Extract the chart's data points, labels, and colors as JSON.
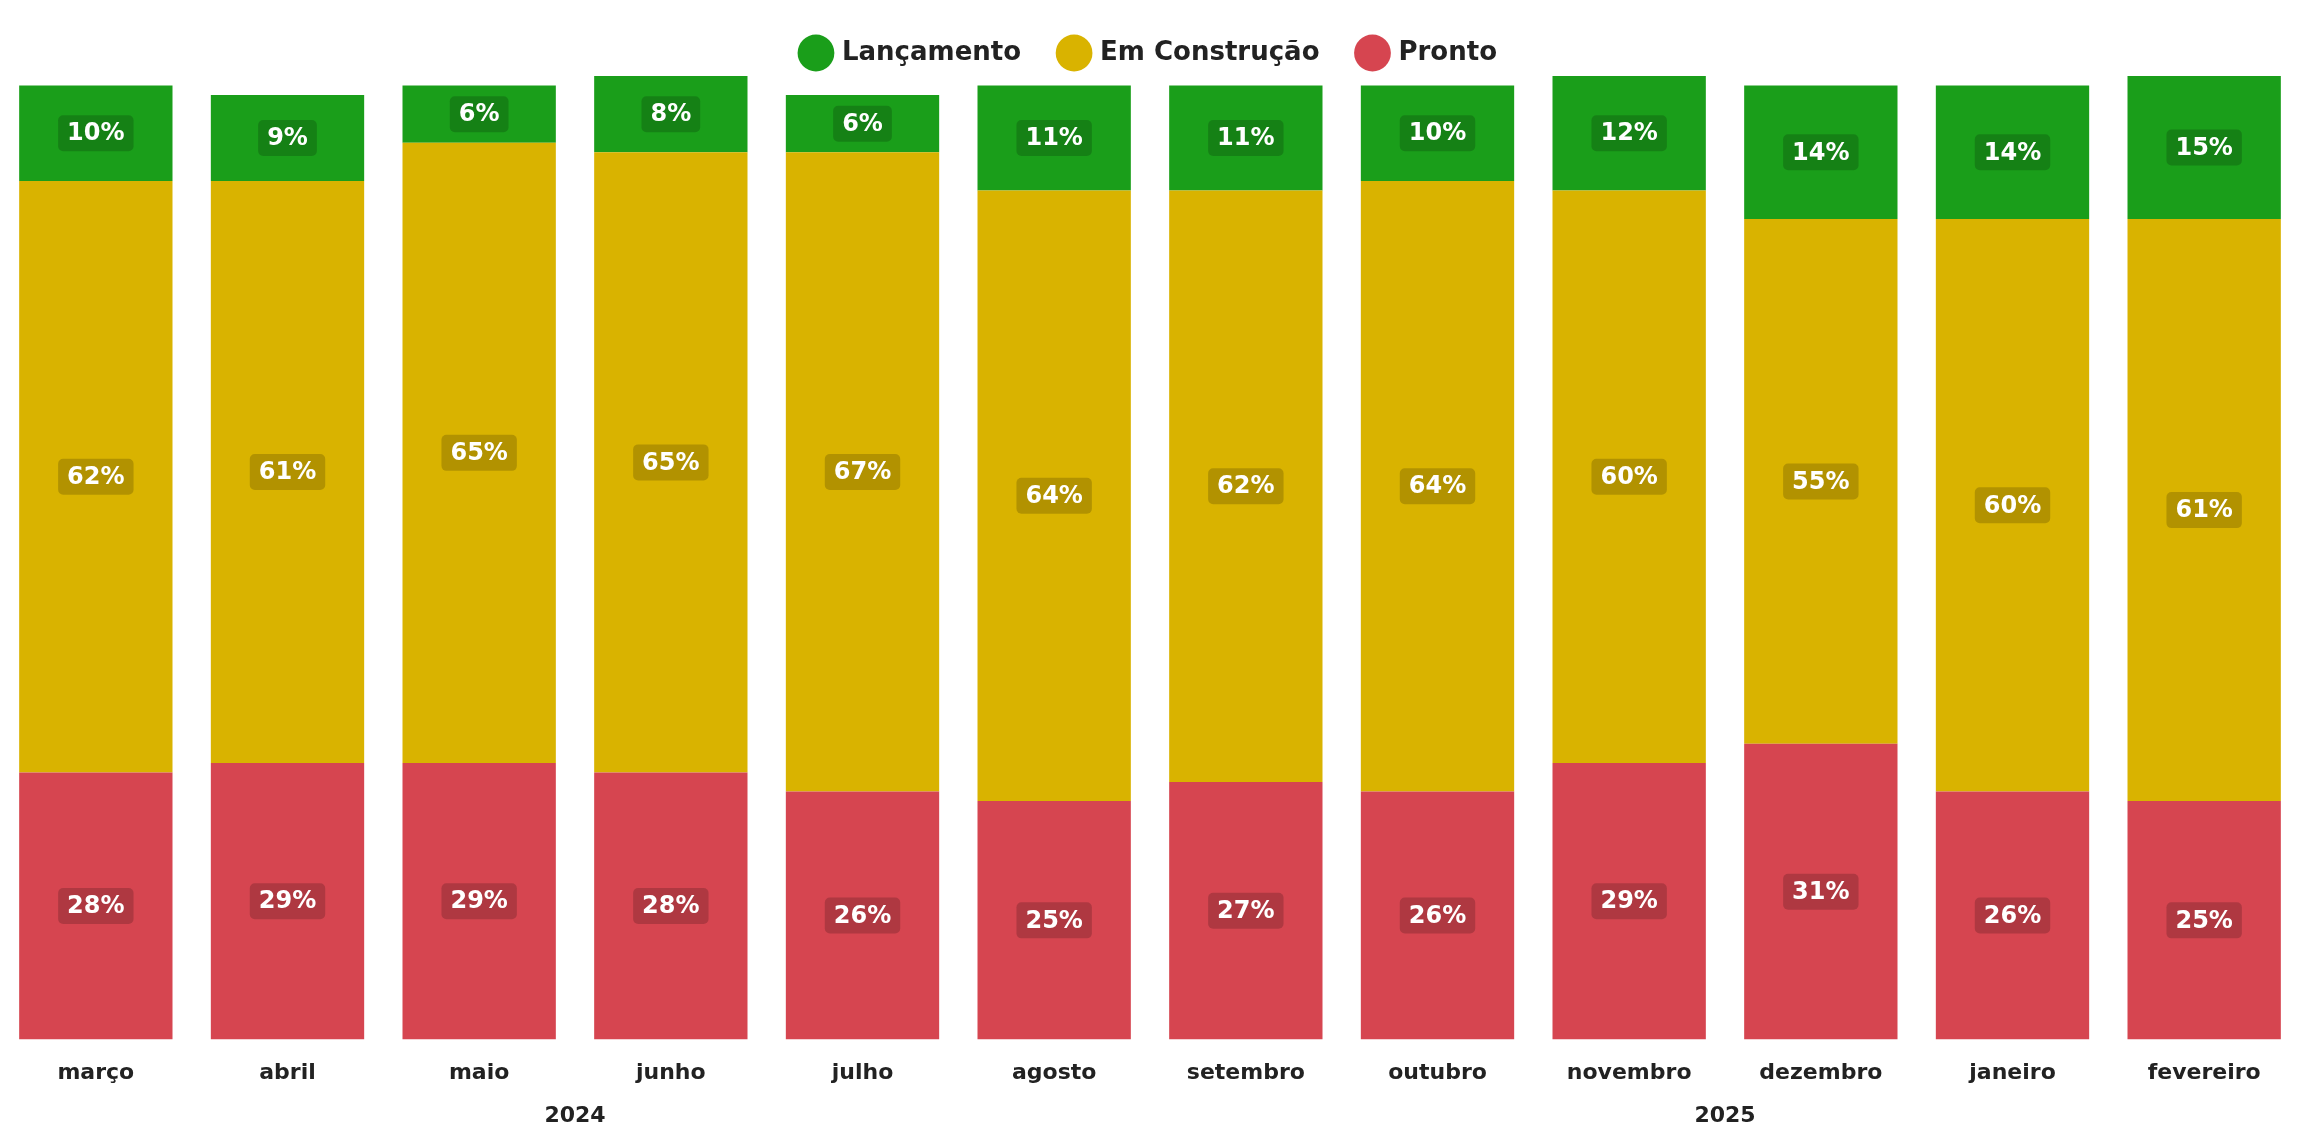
{
  "chart_data": {
    "type": "bar",
    "stacked": true,
    "legend": "top",
    "grid": false,
    "tick_labels": "x",
    "categories": [
      "março",
      "abril",
      "maio",
      "junho",
      "julho",
      "agosto",
      "setembro",
      "outubro",
      "novembro",
      "dezembro",
      "janeiro",
      "fevereiro"
    ],
    "ylim": [
      0,
      101
    ],
    "series": [
      {
        "name": "Pronto",
        "color": "#d64550",
        "values": [
          28,
          29,
          29,
          28,
          26,
          25,
          27,
          26,
          29,
          31,
          26,
          25
        ],
        "value_labels": [
          "28%",
          "29%",
          "29%",
          "28%",
          "26%",
          "25%",
          "27%",
          "26%",
          "29%",
          "31%",
          "26%",
          "25%"
        ]
      },
      {
        "name": "Em Construção",
        "color": "#d9b300",
        "values": [
          62,
          61,
          65,
          65,
          67,
          64,
          62,
          64,
          60,
          55,
          60,
          61
        ],
        "value_labels": [
          "62%",
          "61%",
          "65%",
          "65%",
          "67%",
          "64%",
          "62%",
          "64%",
          "60%",
          "55%",
          "60%",
          "61%"
        ]
      },
      {
        "name": "Lançamento",
        "color": "#1a9e1a",
        "values": [
          10,
          9,
          6,
          8,
          6,
          11,
          11,
          10,
          12,
          14,
          14,
          15
        ],
        "value_labels": [
          "10%",
          "9%",
          "6%",
          "8%",
          "6%",
          "11%",
          "11%",
          "10%",
          "12%",
          "14%",
          "14%",
          "15%"
        ]
      }
    ],
    "annotations": [
      "2024",
      "2025"
    ]
  }
}
